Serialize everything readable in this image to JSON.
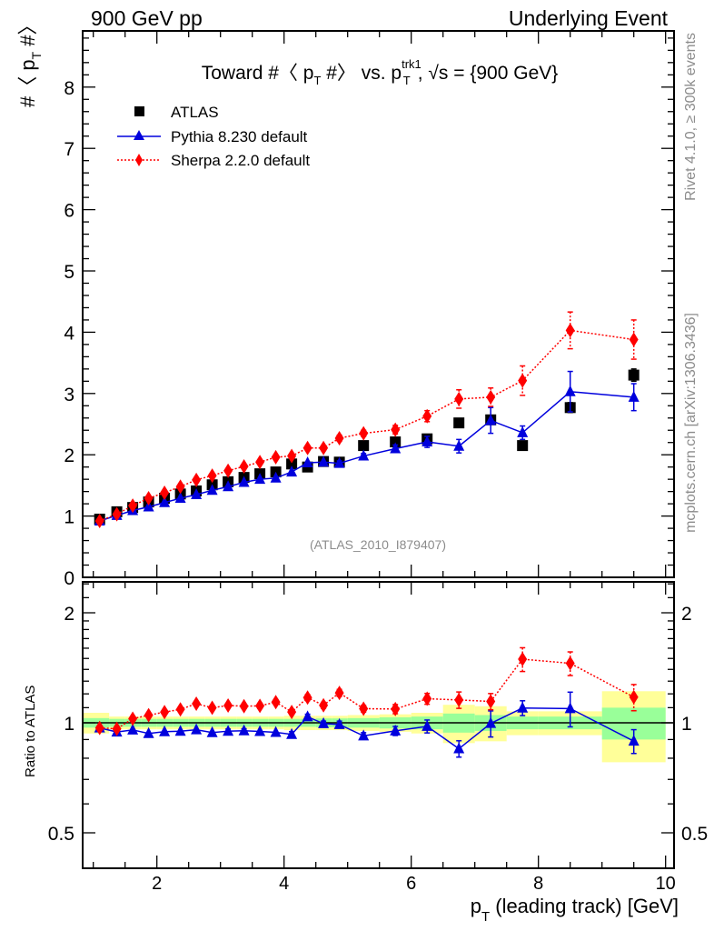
{
  "header": {
    "left_label": "900 GeV pp",
    "right_label": "Underlying Event"
  },
  "side_labels": {
    "rivet": "Rivet 4.1.0, ≥ 300k events",
    "mcplots": "mcplots.cern.ch [arXiv:1306.3436]"
  },
  "analysis_tag": "(ATLAS_2010_I879407)",
  "chart_data": [
    {
      "type": "scatter",
      "panel": "main",
      "title": "Toward #〈 p_T #〉 vs. p_T^trk1, √s = {900 GeV}",
      "title_parts": {
        "prefix": "Toward #〈 p",
        "sub1": "T",
        "mid": " #〉 vs. p",
        "sup2": "trk1",
        "sub2": "T",
        "suffix": ", √s = {900 GeV}"
      },
      "ylabel": "#〈 p_T #〉",
      "ylabel_parts": {
        "prefix": "#〈 p",
        "sub": "T",
        "suffix": " #〉"
      },
      "xlabel": "p_T (leading track) [GeV]",
      "xlim": [
        0.83,
        10.14
      ],
      "ylim": [
        0,
        8.9
      ],
      "yticks": [
        0,
        1,
        2,
        3,
        4,
        5,
        6,
        7,
        8
      ],
      "ytick_labels": [
        "0",
        "1",
        "2",
        "3",
        "4",
        "5",
        "6",
        "7",
        "8"
      ],
      "legend_position": "top-left",
      "x": [
        1.1,
        1.37,
        1.62,
        1.87,
        2.12,
        2.37,
        2.62,
        2.87,
        3.12,
        3.37,
        3.62,
        3.87,
        4.12,
        4.37,
        4.62,
        4.87,
        5.25,
        5.75,
        6.25,
        6.75,
        7.25,
        7.75,
        8.5,
        9.5
      ],
      "series": [
        {
          "name": "ATLAS",
          "marker": "square",
          "color": "#000000",
          "line": "none",
          "values": [
            0.95,
            1.07,
            1.14,
            1.23,
            1.29,
            1.36,
            1.41,
            1.51,
            1.56,
            1.63,
            1.69,
            1.72,
            1.85,
            1.8,
            1.89,
            1.88,
            2.15,
            2.21,
            2.26,
            2.52,
            2.57,
            2.15,
            2.77,
            3.3
          ],
          "errors": [
            0.01,
            0.01,
            0.01,
            0.01,
            0.01,
            0.01,
            0.01,
            0.01,
            0.01,
            0.01,
            0.02,
            0.02,
            0.02,
            0.02,
            0.02,
            0.02,
            0.03,
            0.04,
            0.05,
            0.06,
            0.07,
            0.07,
            0.08,
            0.1
          ]
        },
        {
          "name": "Pythia 8.230 default",
          "marker": "triangle",
          "color": "#0000dd",
          "line": "solid",
          "values": [
            0.92,
            1.01,
            1.09,
            1.15,
            1.22,
            1.29,
            1.35,
            1.42,
            1.48,
            1.55,
            1.6,
            1.62,
            1.72,
            1.87,
            1.88,
            1.86,
            1.98,
            2.1,
            2.21,
            2.14,
            2.56,
            2.36,
            3.03,
            2.94
          ],
          "errors": [
            0.01,
            0.01,
            0.01,
            0.01,
            0.01,
            0.01,
            0.01,
            0.01,
            0.02,
            0.02,
            0.02,
            0.02,
            0.03,
            0.03,
            0.03,
            0.04,
            0.04,
            0.06,
            0.09,
            0.11,
            0.21,
            0.11,
            0.33,
            0.22
          ]
        },
        {
          "name": "Sherpa 2.2.0 default",
          "marker": "diamond",
          "color": "#ff0000",
          "line": "dotted",
          "values": [
            0.92,
            1.03,
            1.17,
            1.29,
            1.38,
            1.48,
            1.59,
            1.66,
            1.74,
            1.81,
            1.88,
            1.96,
            1.98,
            2.11,
            2.11,
            2.27,
            2.35,
            2.41,
            2.63,
            2.91,
            2.94,
            3.21,
            4.03,
            3.88
          ],
          "errors": [
            0.01,
            0.01,
            0.01,
            0.01,
            0.02,
            0.02,
            0.02,
            0.02,
            0.02,
            0.02,
            0.03,
            0.03,
            0.03,
            0.04,
            0.04,
            0.05,
            0.05,
            0.07,
            0.09,
            0.15,
            0.15,
            0.24,
            0.3,
            0.32
          ]
        }
      ]
    },
    {
      "type": "scatter",
      "panel": "ratio",
      "ylabel": "Ratio to ATLAS",
      "xlabel": "p_T (leading track) [GeV]",
      "xlabel_parts": {
        "prefix": "p",
        "sub": "T",
        "suffix": " (leading track) [GeV]"
      },
      "yscale": "log",
      "ylim": [
        0.4,
        2.42
      ],
      "yticks": [
        0.5,
        1,
        2
      ],
      "ytick_labels": [
        "0.5",
        "1",
        "2"
      ],
      "xticks": [
        2,
        4,
        6,
        8,
        10
      ],
      "xtick_labels": [
        "2",
        "4",
        "6",
        "8",
        "10"
      ],
      "reference_line": 1,
      "band_bins": [
        {
          "lo": 0.83,
          "hi": 1.25,
          "stat": 0.03,
          "total": 0.065
        },
        {
          "lo": 1.25,
          "hi": 1.5,
          "stat": 0.025,
          "total": 0.04
        },
        {
          "lo": 1.5,
          "hi": 1.75,
          "stat": 0.025,
          "total": 0.04
        },
        {
          "lo": 1.75,
          "hi": 2.0,
          "stat": 0.025,
          "total": 0.04
        },
        {
          "lo": 2.0,
          "hi": 2.25,
          "stat": 0.025,
          "total": 0.04
        },
        {
          "lo": 2.25,
          "hi": 2.5,
          "stat": 0.025,
          "total": 0.04
        },
        {
          "lo": 2.5,
          "hi": 2.75,
          "stat": 0.025,
          "total": 0.04
        },
        {
          "lo": 2.75,
          "hi": 3.0,
          "stat": 0.025,
          "total": 0.04
        },
        {
          "lo": 3.0,
          "hi": 3.25,
          "stat": 0.025,
          "total": 0.04
        },
        {
          "lo": 3.25,
          "hi": 3.5,
          "stat": 0.025,
          "total": 0.04
        },
        {
          "lo": 3.5,
          "hi": 3.75,
          "stat": 0.025,
          "total": 0.04
        },
        {
          "lo": 3.75,
          "hi": 4.0,
          "stat": 0.025,
          "total": 0.04
        },
        {
          "lo": 4.0,
          "hi": 4.25,
          "stat": 0.025,
          "total": 0.045
        },
        {
          "lo": 4.25,
          "hi": 4.5,
          "stat": 0.025,
          "total": 0.045
        },
        {
          "lo": 4.5,
          "hi": 4.75,
          "stat": 0.028,
          "total": 0.045
        },
        {
          "lo": 4.75,
          "hi": 5.0,
          "stat": 0.028,
          "total": 0.045
        },
        {
          "lo": 5.0,
          "hi": 5.5,
          "stat": 0.03,
          "total": 0.05
        },
        {
          "lo": 5.5,
          "hi": 6.0,
          "stat": 0.035,
          "total": 0.055
        },
        {
          "lo": 6.0,
          "hi": 6.5,
          "stat": 0.04,
          "total": 0.065
        },
        {
          "lo": 6.5,
          "hi": 7.0,
          "stat": 0.06,
          "total": 0.12
        },
        {
          "lo": 7.0,
          "hi": 7.5,
          "stat": 0.05,
          "total": 0.11
        },
        {
          "lo": 7.5,
          "hi": 8.0,
          "stat": 0.04,
          "total": 0.075
        },
        {
          "lo": 8.0,
          "hi": 9.0,
          "stat": 0.04,
          "total": 0.075
        },
        {
          "lo": 9.0,
          "hi": 10.0,
          "stat": 0.1,
          "total": 0.22
        }
      ],
      "band_colors": {
        "stat": "#99ff99",
        "total": "#ffff99"
      }
    }
  ]
}
